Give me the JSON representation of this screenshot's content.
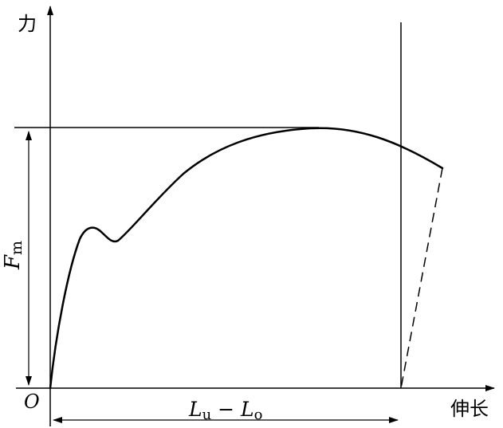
{
  "labels": {
    "y_axis": "力",
    "x_axis": "伸长",
    "origin": "O",
    "max_force": {
      "letter": "F",
      "sub": "m"
    },
    "extension": {
      "l1": "L",
      "s1": "u",
      "minus": " − ",
      "l2": "L",
      "s2": "o"
    }
  },
  "colors": {
    "ink": "#000000",
    "background": "#ffffff"
  }
}
